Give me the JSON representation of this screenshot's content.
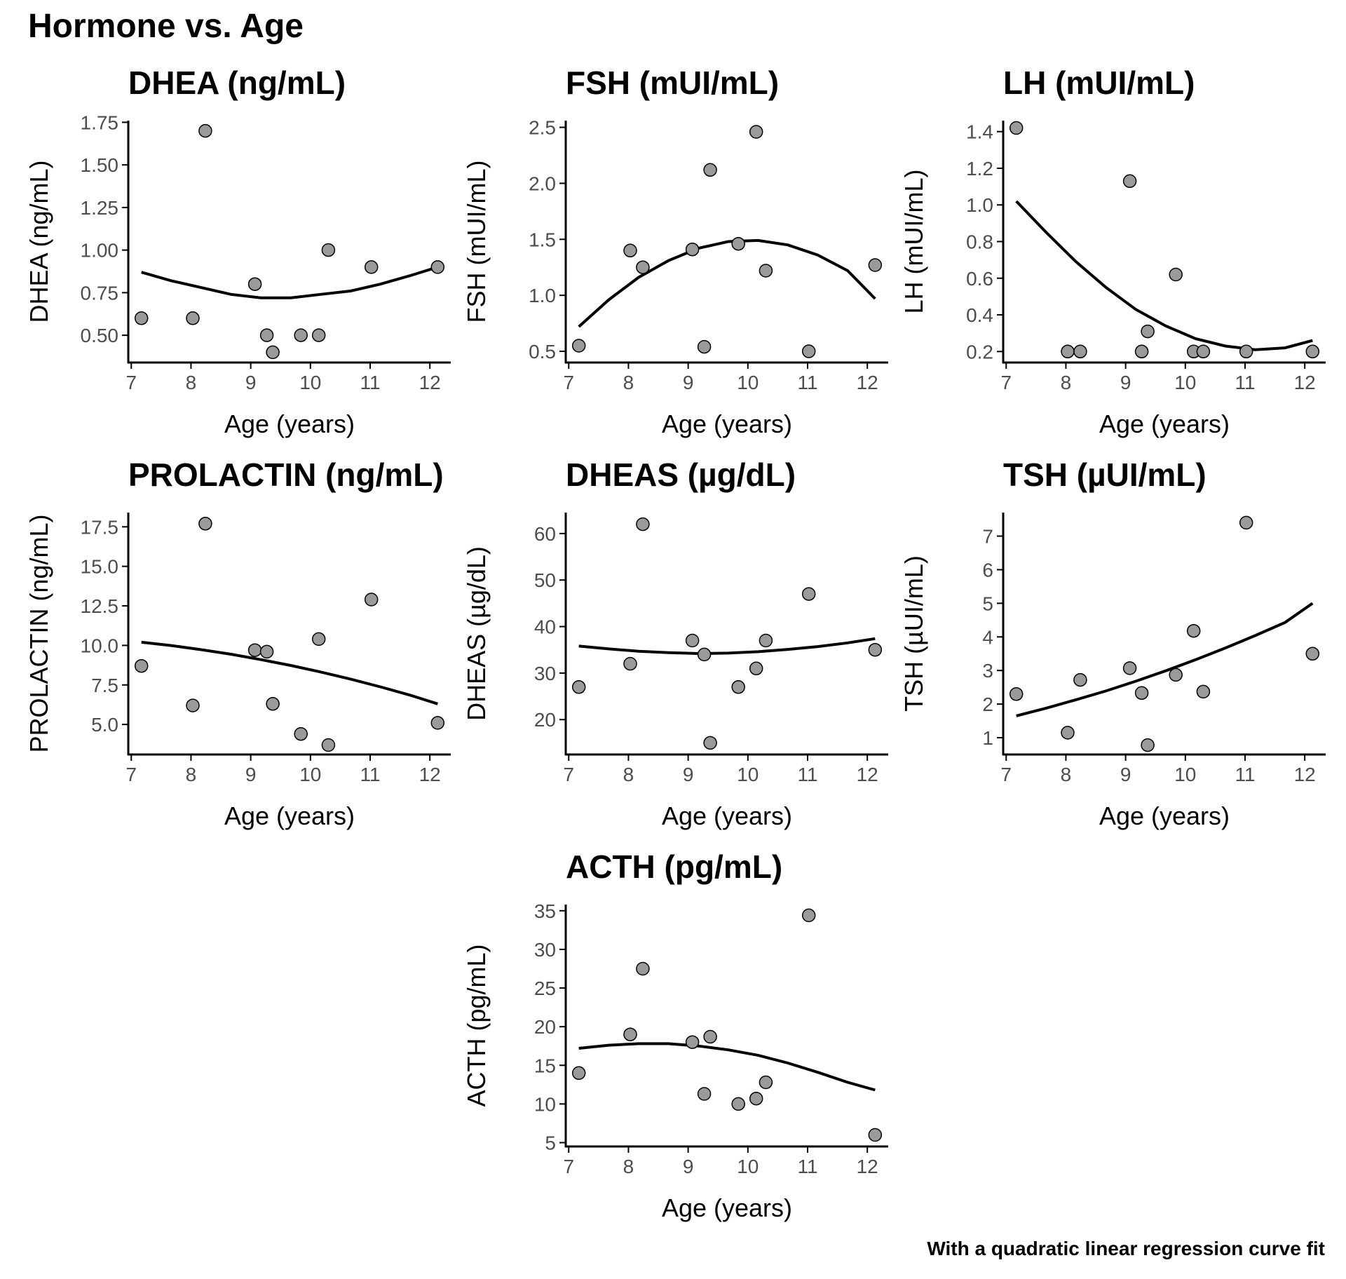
{
  "title": "Hormone vs. Age",
  "caption": "With a quadratic linear regression curve fit",
  "colors": {
    "point_fill": "#9a9a9a",
    "point_stroke": "#000000",
    "curve": "#000000",
    "axis": "#000000"
  },
  "chart_data": [
    {
      "type": "scatter",
      "title": "DHEA (ng/mL)",
      "xlabel": "Age (years)",
      "ylabel": "DHEA (ng/mL)",
      "xlim": [
        6.95,
        12.35
      ],
      "ylim": [
        0.34,
        1.76
      ],
      "xticks": [
        7,
        8,
        9,
        10,
        11,
        12
      ],
      "xtick_labels": [
        "7",
        "8",
        "9",
        "10",
        "11",
        "12"
      ],
      "yticks": [
        0.5,
        0.75,
        1.0,
        1.25,
        1.5,
        1.75
      ],
      "ytick_labels": [
        "0.50",
        "0.75",
        "1.00",
        "1.25",
        "1.50",
        "1.75"
      ],
      "points": [
        [
          7.17,
          0.6
        ],
        [
          8.03,
          0.6
        ],
        [
          8.24,
          1.7
        ],
        [
          9.07,
          0.8
        ],
        [
          9.27,
          0.5
        ],
        [
          9.37,
          0.4
        ],
        [
          9.84,
          0.5
        ],
        [
          10.14,
          0.5
        ],
        [
          10.3,
          1.0
        ],
        [
          11.02,
          0.9
        ],
        [
          12.13,
          0.9
        ]
      ],
      "fit_curve": {
        "x": [
          7.17,
          7.67,
          8.17,
          8.67,
          9.17,
          9.67,
          10.17,
          10.67,
          11.17,
          11.67,
          12.13
        ],
        "y": [
          0.87,
          0.82,
          0.78,
          0.74,
          0.72,
          0.72,
          0.74,
          0.76,
          0.8,
          0.85,
          0.9
        ]
      },
      "grid": false
    },
    {
      "type": "scatter",
      "title": "FSH (mUI/mL)",
      "xlabel": "Age (years)",
      "ylabel": "FSH (mUI/mL)",
      "xlim": [
        6.95,
        12.35
      ],
      "ylim": [
        0.4,
        2.56
      ],
      "xticks": [
        7,
        8,
        9,
        10,
        11,
        12
      ],
      "xtick_labels": [
        "7",
        "8",
        "9",
        "10",
        "11",
        "12"
      ],
      "yticks": [
        0.5,
        1.0,
        1.5,
        2.0,
        2.5
      ],
      "ytick_labels": [
        "0.5",
        "1.0",
        "1.5",
        "2.0",
        "2.5"
      ],
      "points": [
        [
          7.17,
          0.55
        ],
        [
          8.03,
          1.4
        ],
        [
          8.24,
          1.25
        ],
        [
          9.07,
          1.41
        ],
        [
          9.27,
          0.54
        ],
        [
          9.37,
          2.12
        ],
        [
          9.84,
          1.46
        ],
        [
          10.14,
          2.46
        ],
        [
          10.3,
          1.22
        ],
        [
          11.02,
          0.5
        ],
        [
          12.13,
          1.27
        ]
      ],
      "fit_curve": {
        "x": [
          7.17,
          7.67,
          8.17,
          8.67,
          9.17,
          9.67,
          10.17,
          10.67,
          11.17,
          11.67,
          12.13
        ],
        "y": [
          0.72,
          0.96,
          1.16,
          1.31,
          1.42,
          1.48,
          1.49,
          1.45,
          1.36,
          1.22,
          0.97
        ]
      },
      "grid": false
    },
    {
      "type": "scatter",
      "title": "LH (mUI/mL)",
      "xlabel": "Age (years)",
      "ylabel": "LH (mUI/mL)",
      "xlim": [
        6.95,
        12.35
      ],
      "ylim": [
        0.14,
        1.46
      ],
      "xticks": [
        7,
        8,
        9,
        10,
        11,
        12
      ],
      "xtick_labels": [
        "7",
        "8",
        "9",
        "10",
        "11",
        "12"
      ],
      "yticks": [
        0.2,
        0.4,
        0.6,
        0.8,
        1.0,
        1.2,
        1.4
      ],
      "ytick_labels": [
        "0.2",
        "0.4",
        "0.6",
        "0.8",
        "1.0",
        "1.2",
        "1.4"
      ],
      "points": [
        [
          7.17,
          1.42
        ],
        [
          8.03,
          0.2
        ],
        [
          8.24,
          0.2
        ],
        [
          9.07,
          1.13
        ],
        [
          9.27,
          0.2
        ],
        [
          9.37,
          0.31
        ],
        [
          9.84,
          0.62
        ],
        [
          10.14,
          0.2
        ],
        [
          10.3,
          0.2
        ],
        [
          11.02,
          0.2
        ],
        [
          12.13,
          0.2
        ]
      ],
      "fit_curve": {
        "x": [
          7.17,
          7.67,
          8.17,
          8.67,
          9.17,
          9.67,
          10.17,
          10.67,
          11.17,
          11.67,
          12.13
        ],
        "y": [
          1.02,
          0.85,
          0.69,
          0.55,
          0.43,
          0.34,
          0.27,
          0.23,
          0.21,
          0.22,
          0.26
        ]
      },
      "grid": false
    },
    {
      "type": "scatter",
      "title": "PROLACTIN (ng/mL)",
      "xlabel": "Age (years)",
      "ylabel": "PROLACTIN (ng/mL)",
      "xlim": [
        6.95,
        12.35
      ],
      "ylim": [
        3.1,
        18.4
      ],
      "xticks": [
        7,
        8,
        9,
        10,
        11,
        12
      ],
      "xtick_labels": [
        "7",
        "8",
        "9",
        "10",
        "11",
        "12"
      ],
      "yticks": [
        5.0,
        7.5,
        10.0,
        12.5,
        15.0,
        17.5
      ],
      "ytick_labels": [
        "5.0",
        "7.5",
        "10.0",
        "12.5",
        "15.0",
        "17.5"
      ],
      "points": [
        [
          7.17,
          8.7
        ],
        [
          8.03,
          6.2
        ],
        [
          8.24,
          17.7
        ],
        [
          9.07,
          9.7
        ],
        [
          9.27,
          9.6
        ],
        [
          9.37,
          6.3
        ],
        [
          9.84,
          4.4
        ],
        [
          10.14,
          10.4
        ],
        [
          10.3,
          3.7
        ],
        [
          11.02,
          12.9
        ],
        [
          12.13,
          5.1
        ]
      ],
      "fit_curve": {
        "x": [
          7.17,
          7.67,
          8.17,
          8.67,
          9.17,
          9.67,
          10.17,
          10.67,
          11.17,
          11.67,
          12.13
        ],
        "y": [
          10.2,
          9.99,
          9.73,
          9.44,
          9.1,
          8.73,
          8.32,
          7.87,
          7.38,
          6.85,
          6.3
        ]
      },
      "grid": false
    },
    {
      "type": "scatter",
      "title": "DHEAS (µg/dL)",
      "xlabel": "Age (years)",
      "ylabel": "DHEAS (µg/dL)",
      "xlim": [
        6.95,
        12.35
      ],
      "ylim": [
        12.5,
        64.5
      ],
      "xticks": [
        7,
        8,
        9,
        10,
        11,
        12
      ],
      "xtick_labels": [
        "7",
        "8",
        "9",
        "10",
        "11",
        "12"
      ],
      "yticks": [
        20,
        30,
        40,
        50,
        60
      ],
      "ytick_labels": [
        "20",
        "30",
        "40",
        "50",
        "60"
      ],
      "points": [
        [
          7.17,
          27
        ],
        [
          8.03,
          32
        ],
        [
          8.24,
          62
        ],
        [
          9.07,
          37
        ],
        [
          9.27,
          34
        ],
        [
          9.37,
          15
        ],
        [
          9.84,
          27
        ],
        [
          10.14,
          31
        ],
        [
          10.3,
          37
        ],
        [
          11.02,
          47
        ],
        [
          12.13,
          35
        ]
      ],
      "fit_curve": {
        "x": [
          7.17,
          7.67,
          8.17,
          8.67,
          9.17,
          9.67,
          10.17,
          10.67,
          11.17,
          11.67,
          12.13
        ],
        "y": [
          35.8,
          35.2,
          34.7,
          34.4,
          34.2,
          34.3,
          34.6,
          35.1,
          35.7,
          36.5,
          37.4
        ]
      },
      "grid": false
    },
    {
      "type": "scatter",
      "title": "TSH (µUI/mL)",
      "xlabel": "Age (years)",
      "ylabel": "TSH (µUI/mL)",
      "xlim": [
        6.95,
        12.35
      ],
      "ylim": [
        0.5,
        7.7
      ],
      "xticks": [
        7,
        8,
        9,
        10,
        11,
        12
      ],
      "xtick_labels": [
        "7",
        "8",
        "9",
        "10",
        "11",
        "12"
      ],
      "yticks": [
        1,
        2,
        3,
        4,
        5,
        6,
        7
      ],
      "ytick_labels": [
        "1",
        "2",
        "3",
        "4",
        "5",
        "6",
        "7"
      ],
      "points": [
        [
          7.17,
          2.3
        ],
        [
          8.03,
          1.15
        ],
        [
          8.24,
          2.72
        ],
        [
          9.07,
          3.07
        ],
        [
          9.27,
          2.33
        ],
        [
          9.37,
          0.78
        ],
        [
          9.84,
          2.87
        ],
        [
          10.14,
          4.18
        ],
        [
          10.3,
          2.37
        ],
        [
          11.02,
          7.4
        ],
        [
          12.13,
          3.5
        ]
      ],
      "fit_curve": {
        "x": [
          7.17,
          7.67,
          8.17,
          8.67,
          9.17,
          9.67,
          10.17,
          10.67,
          11.17,
          11.67,
          12.13
        ],
        "y": [
          1.65,
          1.88,
          2.13,
          2.39,
          2.68,
          2.99,
          3.32,
          3.67,
          4.04,
          4.43,
          5.0
        ]
      },
      "grid": false
    },
    {
      "type": "scatter",
      "title": "ACTH (pg/mL)",
      "xlabel": "Age (years)",
      "ylabel": "ACTH (pg/mL)",
      "xlim": [
        6.95,
        12.35
      ],
      "ylim": [
        4.5,
        35.8
      ],
      "xticks": [
        7,
        8,
        9,
        10,
        11,
        12
      ],
      "xtick_labels": [
        "7",
        "8",
        "9",
        "10",
        "11",
        "12"
      ],
      "yticks": [
        5,
        10,
        15,
        20,
        25,
        30,
        35
      ],
      "ytick_labels": [
        "5",
        "10",
        "15",
        "20",
        "25",
        "30",
        "35"
      ],
      "points": [
        [
          7.17,
          14
        ],
        [
          8.03,
          19
        ],
        [
          8.24,
          27.5
        ],
        [
          9.07,
          18
        ],
        [
          9.27,
          11.3
        ],
        [
          9.37,
          18.7
        ],
        [
          9.84,
          10
        ],
        [
          10.14,
          10.7
        ],
        [
          10.3,
          12.8
        ],
        [
          11.02,
          34.4
        ],
        [
          12.13,
          6
        ]
      ],
      "fit_curve": {
        "x": [
          7.17,
          7.67,
          8.17,
          8.67,
          9.17,
          9.67,
          10.17,
          10.67,
          11.17,
          11.67,
          12.13
        ],
        "y": [
          17.2,
          17.6,
          17.8,
          17.8,
          17.5,
          17.0,
          16.3,
          15.3,
          14.1,
          12.8,
          11.8
        ]
      },
      "grid": false
    }
  ]
}
